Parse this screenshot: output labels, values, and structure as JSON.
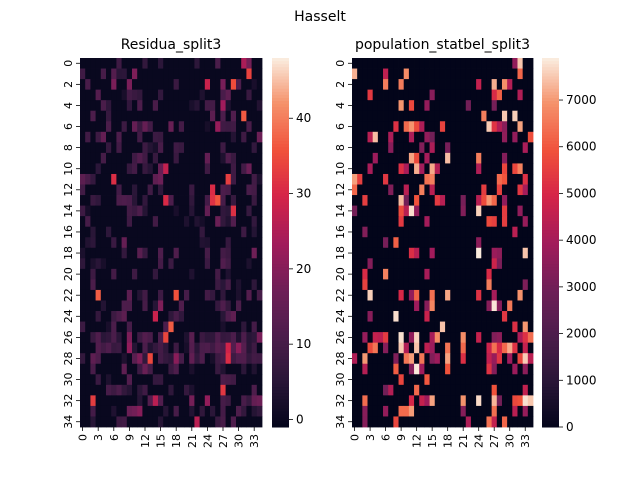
{
  "figure_title": "Hasselt",
  "chart_data": [
    {
      "type": "heatmap",
      "title": "Residua_split3",
      "colormap": "rocket",
      "rows": 35,
      "cols": 35,
      "x_ticks": [
        "0",
        "3",
        "6",
        "9",
        "12",
        "15",
        "18",
        "21",
        "24",
        "27",
        "30",
        "33"
      ],
      "y_ticks": [
        "0",
        "2",
        "4",
        "6",
        "8",
        "10",
        "12",
        "14",
        "16",
        "18",
        "20",
        "22",
        "24",
        "26",
        "28",
        "30",
        "32",
        "34"
      ],
      "vmin": -1,
      "vmax": 48,
      "colorbar_ticks": [
        "0",
        "10",
        "20",
        "30",
        "40"
      ],
      "colorbar_values": [
        0,
        10,
        20,
        30,
        40
      ]
    },
    {
      "type": "heatmap",
      "title": "population_statbel_split3",
      "colormap": "rocket",
      "rows": 35,
      "cols": 35,
      "x_ticks": [
        "0",
        "3",
        "6",
        "9",
        "12",
        "15",
        "18",
        "21",
        "24",
        "27",
        "30",
        "33"
      ],
      "y_ticks": [
        "0",
        "2",
        "4",
        "6",
        "8",
        "10",
        "12",
        "14",
        "16",
        "18",
        "20",
        "22",
        "24",
        "26",
        "28",
        "30",
        "32",
        "34"
      ],
      "vmin": 0,
      "vmax": 7900,
      "colorbar_ticks": [
        "0",
        "1000",
        "2000",
        "3000",
        "4000",
        "5000",
        "6000",
        "7000"
      ],
      "colorbar_values": [
        0,
        1000,
        2000,
        3000,
        4000,
        5000,
        6000,
        7000
      ]
    }
  ]
}
